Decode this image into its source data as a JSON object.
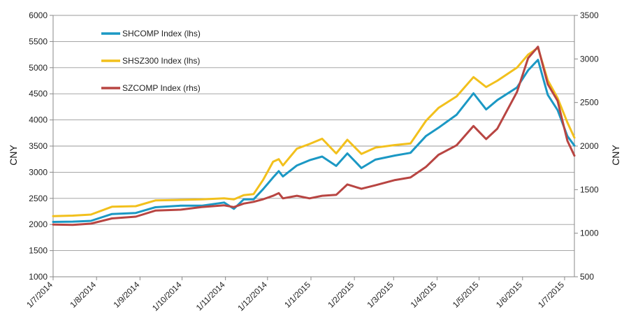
{
  "chart_data": {
    "type": "line",
    "title": "",
    "ylabel_left": "CNY",
    "ylabel_right": "CNY",
    "ylim_left": [
      1000,
      6000
    ],
    "ylim_right": [
      500,
      3500
    ],
    "yticks_left": [
      "1000",
      "1500",
      "2000",
      "2500",
      "3000",
      "3500",
      "4000",
      "4500",
      "5000",
      "5500",
      "6000"
    ],
    "yticks_right": [
      "500",
      "1000",
      "1500",
      "2000",
      "2500",
      "3000",
      "3500"
    ],
    "x_tick_labels": [
      "1/7/2014",
      "1/8/2014",
      "1/9/2014",
      "1/10/2014",
      "1/11/2014",
      "1/12/2014",
      "1/1/2015",
      "1/2/2015",
      "1/3/2015",
      "1/4/2015",
      "1/5/2015",
      "1/6/2015",
      "1/7/2015"
    ],
    "x_end": "2015-07-08",
    "grid": true,
    "legend_position": "top-left",
    "series": [
      {
        "name": "SHCOMP Index (lhs)",
        "axis": "left",
        "color": "#1b98c4",
        "points": [
          [
            "2014-07-01",
            2050
          ],
          [
            "2014-07-15",
            2055
          ],
          [
            "2014-07-28",
            2070
          ],
          [
            "2014-08-12",
            2200
          ],
          [
            "2014-08-29",
            2220
          ],
          [
            "2014-09-12",
            2330
          ],
          [
            "2014-09-30",
            2360
          ],
          [
            "2014-10-15",
            2360
          ],
          [
            "2014-10-31",
            2420
          ],
          [
            "2014-11-07",
            2300
          ],
          [
            "2014-11-14",
            2480
          ],
          [
            "2014-11-21",
            2480
          ],
          [
            "2014-11-28",
            2680
          ],
          [
            "2014-12-05",
            2900
          ],
          [
            "2014-12-09",
            3020
          ],
          [
            "2014-12-12",
            2920
          ],
          [
            "2014-12-22",
            3130
          ],
          [
            "2014-12-31",
            3230
          ],
          [
            "2015-01-09",
            3300
          ],
          [
            "2015-01-19",
            3120
          ],
          [
            "2015-01-27",
            3360
          ],
          [
            "2015-02-06",
            3080
          ],
          [
            "2015-02-16",
            3240
          ],
          [
            "2015-03-02",
            3320
          ],
          [
            "2015-03-13",
            3370
          ],
          [
            "2015-03-24",
            3690
          ],
          [
            "2015-04-02",
            3850
          ],
          [
            "2015-04-15",
            4100
          ],
          [
            "2015-04-27",
            4510
          ],
          [
            "2015-05-06",
            4200
          ],
          [
            "2015-05-14",
            4380
          ],
          [
            "2015-05-28",
            4620
          ],
          [
            "2015-06-05",
            4950
          ],
          [
            "2015-06-12",
            5150
          ],
          [
            "2015-06-19",
            4480
          ],
          [
            "2015-06-26",
            4190
          ],
          [
            "2015-07-03",
            3690
          ],
          [
            "2015-07-08",
            3510
          ]
        ]
      },
      {
        "name": "SHSZ300 Index (lhs)",
        "axis": "left",
        "color": "#f2c01c",
        "points": [
          [
            "2014-07-01",
            2160
          ],
          [
            "2014-07-15",
            2170
          ],
          [
            "2014-07-28",
            2190
          ],
          [
            "2014-08-12",
            2340
          ],
          [
            "2014-08-29",
            2350
          ],
          [
            "2014-09-12",
            2460
          ],
          [
            "2014-09-30",
            2470
          ],
          [
            "2014-10-15",
            2480
          ],
          [
            "2014-10-31",
            2500
          ],
          [
            "2014-11-07",
            2480
          ],
          [
            "2014-11-14",
            2560
          ],
          [
            "2014-11-21",
            2580
          ],
          [
            "2014-11-28",
            2860
          ],
          [
            "2014-12-05",
            3200
          ],
          [
            "2014-12-09",
            3250
          ],
          [
            "2014-12-12",
            3130
          ],
          [
            "2014-12-22",
            3450
          ],
          [
            "2014-12-31",
            3540
          ],
          [
            "2015-01-09",
            3640
          ],
          [
            "2015-01-19",
            3360
          ],
          [
            "2015-01-27",
            3620
          ],
          [
            "2015-02-06",
            3350
          ],
          [
            "2015-02-16",
            3470
          ],
          [
            "2015-03-02",
            3520
          ],
          [
            "2015-03-13",
            3550
          ],
          [
            "2015-03-24",
            3980
          ],
          [
            "2015-04-02",
            4230
          ],
          [
            "2015-04-15",
            4450
          ],
          [
            "2015-04-27",
            4820
          ],
          [
            "2015-05-06",
            4630
          ],
          [
            "2015-05-14",
            4750
          ],
          [
            "2015-05-28",
            5000
          ],
          [
            "2015-06-05",
            5250
          ],
          [
            "2015-06-12",
            5380
          ],
          [
            "2015-06-19",
            4760
          ],
          [
            "2015-06-26",
            4420
          ],
          [
            "2015-07-03",
            3950
          ],
          [
            "2015-07-08",
            3660
          ]
        ]
      },
      {
        "name": "SZCOMP Index  (rhs)",
        "axis": "right",
        "color": "#b84542",
        "points": [
          [
            "2014-07-01",
            1100
          ],
          [
            "2014-07-15",
            1095
          ],
          [
            "2014-07-28",
            1110
          ],
          [
            "2014-08-12",
            1170
          ],
          [
            "2014-08-29",
            1190
          ],
          [
            "2014-09-12",
            1260
          ],
          [
            "2014-09-30",
            1270
          ],
          [
            "2014-10-15",
            1300
          ],
          [
            "2014-10-31",
            1320
          ],
          [
            "2014-11-07",
            1300
          ],
          [
            "2014-11-14",
            1340
          ],
          [
            "2014-11-21",
            1360
          ],
          [
            "2014-11-28",
            1390
          ],
          [
            "2014-12-05",
            1430
          ],
          [
            "2014-12-09",
            1460
          ],
          [
            "2014-12-12",
            1400
          ],
          [
            "2014-12-22",
            1430
          ],
          [
            "2014-12-31",
            1400
          ],
          [
            "2015-01-09",
            1430
          ],
          [
            "2015-01-19",
            1440
          ],
          [
            "2015-01-27",
            1560
          ],
          [
            "2015-02-06",
            1510
          ],
          [
            "2015-02-16",
            1550
          ],
          [
            "2015-03-02",
            1610
          ],
          [
            "2015-03-13",
            1640
          ],
          [
            "2015-03-24",
            1760
          ],
          [
            "2015-04-02",
            1900
          ],
          [
            "2015-04-15",
            2010
          ],
          [
            "2015-04-27",
            2230
          ],
          [
            "2015-05-06",
            2080
          ],
          [
            "2015-05-14",
            2200
          ],
          [
            "2015-05-28",
            2620
          ],
          [
            "2015-06-05",
            3010
          ],
          [
            "2015-06-12",
            3140
          ],
          [
            "2015-06-19",
            2710
          ],
          [
            "2015-06-26",
            2520
          ],
          [
            "2015-07-03",
            2060
          ],
          [
            "2015-07-08",
            1890
          ]
        ]
      }
    ]
  }
}
